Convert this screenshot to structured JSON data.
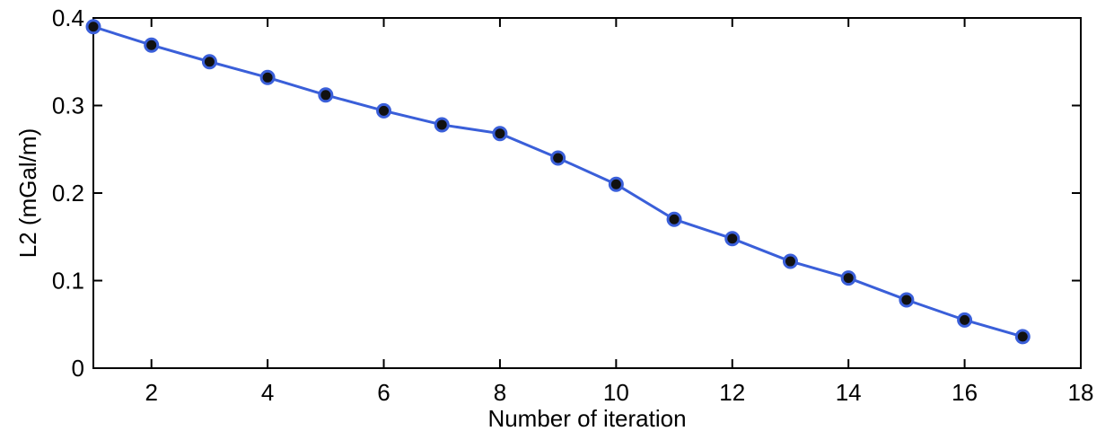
{
  "chart_data": {
    "type": "line",
    "title": "",
    "xlabel": "Number of iteration",
    "ylabel": "L2 (mGal/m)",
    "xlim": [
      1,
      18
    ],
    "ylim": [
      0,
      0.4
    ],
    "xticks": [
      2,
      4,
      6,
      8,
      10,
      12,
      14,
      16,
      18
    ],
    "yticks": [
      0,
      0.1,
      0.2,
      0.3,
      0.4
    ],
    "xtick_labels": [
      "2",
      "4",
      "6",
      "8",
      "10",
      "12",
      "14",
      "16",
      "18"
    ],
    "ytick_labels": [
      "0",
      "0.1",
      "0.2",
      "0.3",
      "0.4"
    ],
    "grid": false,
    "series": [
      {
        "x": [
          1,
          2,
          3,
          4,
          5,
          6,
          7,
          8,
          9,
          10,
          11,
          12,
          13,
          14,
          15,
          16,
          17
        ],
        "values": [
          0.39,
          0.369,
          0.35,
          0.332,
          0.312,
          0.294,
          0.278,
          0.268,
          0.24,
          0.21,
          0.17,
          0.148,
          0.122,
          0.103,
          0.078,
          0.055,
          0.036
        ],
        "line_color": "#3a5fd9",
        "marker_color": "#111111",
        "marker_edge_color": "#3a5fd9"
      }
    ]
  }
}
